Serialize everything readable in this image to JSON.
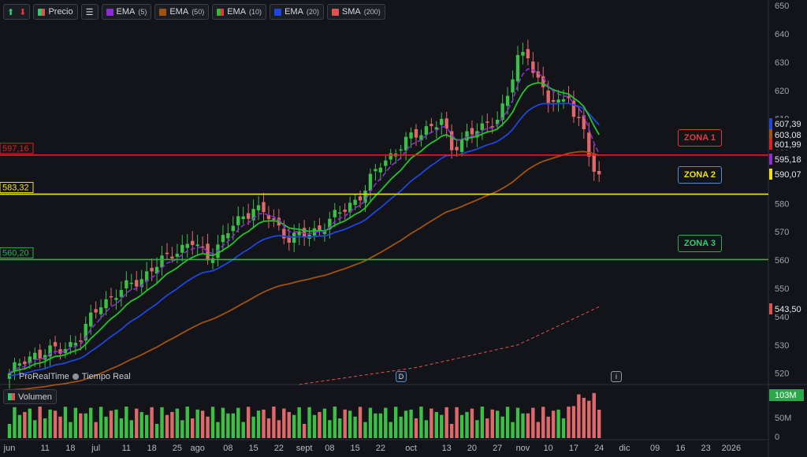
{
  "toolbar": {
    "price_label": "Precio",
    "indicators": [
      {
        "label": "EMA",
        "param": "(5)",
        "color": "#8e2bd6"
      },
      {
        "label": "EMA",
        "param": "(50)",
        "color": "#a0520f"
      },
      {
        "label": "EMA",
        "param": "(10)",
        "color": "#22c42b"
      },
      {
        "label": "EMA",
        "param": "(20)",
        "color": "#1f45e0"
      },
      {
        "label": "SMA",
        "param": "(200)",
        "color": "#e0524d"
      }
    ]
  },
  "branding": {
    "name": "ProRealTime",
    "status": "Tiempo Real"
  },
  "volume_label": "Volumen",
  "zones": [
    {
      "label": "ZONA 1",
      "color": "#e23b3b"
    },
    {
      "label": "ZONA 2",
      "color": "#f2e20a"
    },
    {
      "label": "ZONA 3",
      "color": "#27b34a"
    }
  ],
  "markers": {
    "dividend": "D",
    "info": "i"
  },
  "chart_data": {
    "type": "candlestick",
    "y_ticks": [
      "650",
      "640",
      "630",
      "620",
      "610",
      "600",
      "590",
      "580",
      "570",
      "560",
      "550",
      "540",
      "530",
      "520"
    ],
    "y_range": [
      516,
      652
    ],
    "volume_ticks": [
      "50M",
      "0"
    ],
    "x_ticks": [
      {
        "label": "jun",
        "idx": 0
      },
      {
        "label": "11",
        "idx": 7
      },
      {
        "label": "18",
        "idx": 12
      },
      {
        "label": "jul",
        "idx": 17
      },
      {
        "label": "11",
        "idx": 23
      },
      {
        "label": "18",
        "idx": 28
      },
      {
        "label": "25",
        "idx": 33
      },
      {
        "label": "ago",
        "idx": 37
      },
      {
        "label": "08",
        "idx": 43
      },
      {
        "label": "15",
        "idx": 48
      },
      {
        "label": "22",
        "idx": 53
      },
      {
        "label": "sept",
        "idx": 58
      },
      {
        "label": "08",
        "idx": 63
      },
      {
        "label": "15",
        "idx": 68
      },
      {
        "label": "22",
        "idx": 73
      },
      {
        "label": "oct",
        "idx": 79
      },
      {
        "label": "13",
        "idx": 86
      },
      {
        "label": "20",
        "idx": 91
      },
      {
        "label": "27",
        "idx": 96
      },
      {
        "label": "nov",
        "idx": 101
      },
      {
        "label": "10",
        "idx": 106
      },
      {
        "label": "17",
        "idx": 111
      },
      {
        "label": "24",
        "idx": 116
      },
      {
        "label": "dic",
        "idx": 121
      },
      {
        "label": "09",
        "idx": 127
      },
      {
        "label": "16",
        "idx": 132
      },
      {
        "label": "23",
        "idx": 137
      },
      {
        "label": "2026",
        "idx": 142
      }
    ],
    "horizontal_levels": [
      {
        "label": "597,16",
        "value": 597.16,
        "color": "#e02020"
      },
      {
        "label": "583,32",
        "value": 583.32,
        "color": "#f2e20a"
      },
      {
        "label": "560,20",
        "value": 560.2,
        "color": "#27b34a"
      }
    ],
    "price_tags": [
      {
        "label": "607,39",
        "value": 607.39,
        "color": "#1f45e0"
      },
      {
        "label": "603,08",
        "value": 603.08,
        "color": "#a0520f"
      },
      {
        "label": "601,99",
        "value": 601.99,
        "color": "#e02020"
      },
      {
        "label": "595,18",
        "value": 595.18,
        "color": "#8e2bd6"
      },
      {
        "label": "590,07",
        "value": 590.07,
        "color": "#f2e20a"
      },
      {
        "label": "543,50",
        "value": 543.5,
        "color": "#e0524d"
      }
    ],
    "volume_last": "103M",
    "anchors": [
      [
        0,
        520
      ],
      [
        5,
        527
      ],
      [
        10,
        528
      ],
      [
        14,
        533
      ],
      [
        18,
        545
      ],
      [
        22,
        549
      ],
      [
        26,
        554
      ],
      [
        29,
        558
      ],
      [
        33,
        564
      ],
      [
        36,
        566
      ],
      [
        39,
        561
      ],
      [
        44,
        572
      ],
      [
        48,
        579
      ],
      [
        51,
        575
      ],
      [
        55,
        568
      ],
      [
        59,
        569
      ],
      [
        63,
        574
      ],
      [
        66,
        578
      ],
      [
        70,
        585
      ],
      [
        73,
        594
      ],
      [
        76,
        599
      ],
      [
        79,
        603
      ],
      [
        82,
        607
      ],
      [
        85,
        609
      ],
      [
        87,
        599
      ],
      [
        90,
        605
      ],
      [
        93,
        606
      ],
      [
        96,
        611
      ],
      [
        98,
        618
      ],
      [
        100,
        631
      ],
      [
        102,
        633
      ],
      [
        104,
        624
      ],
      [
        106,
        616
      ],
      [
        108,
        615
      ],
      [
        110,
        620
      ],
      [
        111,
        611
      ],
      [
        113,
        606
      ],
      [
        114,
        597
      ],
      [
        115,
        590
      ],
      [
        116,
        590
      ]
    ]
  }
}
